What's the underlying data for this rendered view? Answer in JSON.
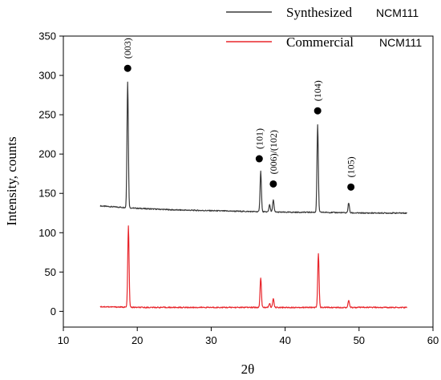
{
  "chart_data": {
    "type": "line",
    "xlabel": "2θ",
    "ylabel": "Intensity, counts",
    "xlim": [
      10,
      60
    ],
    "ylim": [
      -20,
      350
    ],
    "x_ticks": [
      10,
      20,
      30,
      40,
      50,
      60
    ],
    "y_ticks": [
      0,
      50,
      100,
      150,
      200,
      250,
      300,
      350
    ],
    "legend_placement": "top-right",
    "series": [
      {
        "name": "Synthesized",
        "name_suffix": "NCM111",
        "color": "#3a3a3a",
        "baseline": [
          [
            15,
            134
          ],
          [
            20,
            131
          ],
          [
            25,
            129
          ],
          [
            30,
            128
          ],
          [
            35,
            127
          ],
          [
            40,
            126
          ],
          [
            45,
            126
          ],
          [
            50,
            125
          ],
          [
            56.5,
            125
          ]
        ],
        "peaks": [
          {
            "x": 18.7,
            "height": 292
          },
          {
            "x": 36.7,
            "height": 178
          },
          {
            "x": 37.9,
            "height": 136
          },
          {
            "x": 38.4,
            "height": 142
          },
          {
            "x": 44.4,
            "height": 237
          },
          {
            "x": 48.6,
            "height": 138
          }
        ]
      },
      {
        "name": "Commercial",
        "name_suffix": "NCM111",
        "color": "#e8262c",
        "baseline": [
          [
            15,
            6
          ],
          [
            20,
            5
          ],
          [
            30,
            5
          ],
          [
            40,
            5
          ],
          [
            50,
            5
          ],
          [
            56.5,
            5
          ]
        ],
        "peaks": [
          {
            "x": 18.8,
            "height": 108
          },
          {
            "x": 36.7,
            "height": 43
          },
          {
            "x": 37.9,
            "height": 10
          },
          {
            "x": 38.4,
            "height": 16
          },
          {
            "x": 44.5,
            "height": 74
          },
          {
            "x": 48.6,
            "height": 14
          }
        ]
      }
    ],
    "annotations": [
      {
        "label": "(003)",
        "x": 18.7,
        "y": 309
      },
      {
        "label": "(101)",
        "x": 36.5,
        "y": 194
      },
      {
        "label": "(006)/(102)",
        "x": 38.4,
        "y": 162
      },
      {
        "label": "(104)",
        "x": 44.4,
        "y": 255
      },
      {
        "label": "(105)",
        "x": 48.9,
        "y": 158
      }
    ]
  }
}
